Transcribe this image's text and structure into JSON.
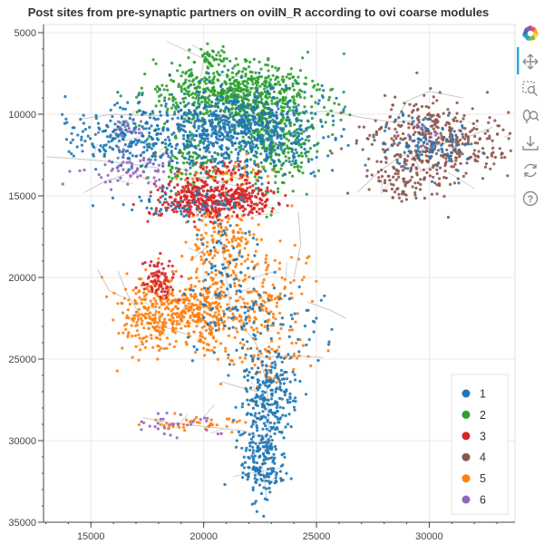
{
  "chart_data": {
    "type": "scatter",
    "title": "Post sites from pre-synaptic partners on oviIN_R according to ovi coarse modules",
    "xlabel": "",
    "ylabel": "",
    "xlim": [
      12900,
      33800
    ],
    "ylim": [
      35000,
      4500
    ],
    "y_inverted": true,
    "x_ticks": [
      15000,
      20000,
      25000,
      30000
    ],
    "y_ticks": [
      5000,
      10000,
      15000,
      20000,
      25000,
      30000,
      35000
    ],
    "grid": true,
    "legend_placement": "bottom-right",
    "legend": [
      "1",
      "2",
      "3",
      "4",
      "5",
      "6"
    ],
    "series_colors": {
      "1": "#1f77b4",
      "2": "#2ca02c",
      "3": "#d62728",
      "4": "#8c564b",
      "5": "#ff7f0e",
      "6": "#9467bd"
    },
    "skeleton_color": "#c8c8c8",
    "clusters": [
      {
        "series": "2",
        "cx": 21500,
        "cy": 8800,
        "sx": 1800,
        "sy": 1000,
        "n": 700
      },
      {
        "series": "2",
        "cx": 23200,
        "cy": 11800,
        "sx": 900,
        "sy": 1400,
        "n": 260
      },
      {
        "series": "2",
        "cx": 19200,
        "cy": 12800,
        "sx": 900,
        "sy": 900,
        "n": 120
      },
      {
        "series": "2",
        "cx": 20500,
        "cy": 6600,
        "sx": 500,
        "sy": 400,
        "n": 40
      },
      {
        "series": "1",
        "cx": 21300,
        "cy": 11000,
        "sx": 2000,
        "sy": 1300,
        "n": 800
      },
      {
        "series": "1",
        "cx": 16200,
        "cy": 11300,
        "sx": 1300,
        "sy": 900,
        "n": 170
      },
      {
        "series": "1",
        "cx": 19200,
        "cy": 15500,
        "sx": 1300,
        "sy": 500,
        "n": 70
      },
      {
        "series": "1",
        "cx": 21000,
        "cy": 20000,
        "sx": 700,
        "sy": 1800,
        "n": 90
      },
      {
        "series": "1",
        "cx": 22700,
        "cy": 23000,
        "sx": 1500,
        "sy": 1400,
        "n": 90
      },
      {
        "series": "1",
        "cx": 22900,
        "cy": 27300,
        "sx": 600,
        "sy": 1200,
        "n": 220
      },
      {
        "series": "1",
        "cx": 22600,
        "cy": 31200,
        "sx": 500,
        "sy": 1100,
        "n": 200
      },
      {
        "series": "1",
        "cx": 30000,
        "cy": 11800,
        "sx": 1200,
        "sy": 900,
        "n": 90
      },
      {
        "series": "3",
        "cx": 20400,
        "cy": 15200,
        "sx": 1300,
        "sy": 600,
        "n": 460
      },
      {
        "series": "3",
        "cx": 18000,
        "cy": 20100,
        "sx": 400,
        "sy": 600,
        "n": 80
      },
      {
        "series": "3",
        "cx": 21000,
        "cy": 13400,
        "sx": 700,
        "sy": 400,
        "n": 40
      },
      {
        "series": "5",
        "cx": 19500,
        "cy": 22100,
        "sx": 1400,
        "sy": 1200,
        "n": 460
      },
      {
        "series": "5",
        "cx": 17400,
        "cy": 22600,
        "sx": 700,
        "sy": 1000,
        "n": 110
      },
      {
        "series": "5",
        "cx": 20800,
        "cy": 17800,
        "sx": 800,
        "sy": 1300,
        "n": 150
      },
      {
        "series": "5",
        "cx": 22800,
        "cy": 20800,
        "sx": 1000,
        "sy": 1500,
        "n": 100
      },
      {
        "series": "5",
        "cx": 22500,
        "cy": 25000,
        "sx": 900,
        "sy": 1200,
        "n": 70
      },
      {
        "series": "5",
        "cx": 19800,
        "cy": 29000,
        "sx": 1200,
        "sy": 250,
        "n": 40
      },
      {
        "series": "5",
        "cx": 21000,
        "cy": 13800,
        "sx": 900,
        "sy": 500,
        "n": 50
      },
      {
        "series": "4",
        "cx": 30300,
        "cy": 11900,
        "sx": 1500,
        "sy": 1300,
        "n": 420
      },
      {
        "series": "4",
        "cx": 28800,
        "cy": 14200,
        "sx": 700,
        "sy": 600,
        "n": 60
      },
      {
        "series": "6",
        "cx": 16800,
        "cy": 13400,
        "sx": 1000,
        "sy": 600,
        "n": 80
      },
      {
        "series": "6",
        "cx": 18900,
        "cy": 29000,
        "sx": 1000,
        "sy": 300,
        "n": 30
      },
      {
        "series": "6",
        "cx": 16500,
        "cy": 10800,
        "sx": 600,
        "sy": 400,
        "n": 25
      },
      {
        "series": "6",
        "cx": 29700,
        "cy": 11200,
        "sx": 500,
        "sy": 500,
        "n": 12
      }
    ],
    "skeleton_paths": [
      [
        [
          14500,
          10300
        ],
        [
          16000,
          10000
        ],
        [
          18000,
          10100
        ],
        [
          20000,
          10000
        ],
        [
          22000,
          10100
        ],
        [
          24000,
          10000
        ],
        [
          25500,
          9800
        ],
        [
          27000,
          10200
        ],
        [
          28500,
          10500
        ],
        [
          30000,
          10300
        ]
      ],
      [
        [
          28500,
          10500
        ],
        [
          29000,
          9200
        ],
        [
          30000,
          8600
        ],
        [
          31500,
          9000
        ]
      ],
      [
        [
          13000,
          12600
        ],
        [
          15000,
          12800
        ],
        [
          16500,
          13000
        ],
        [
          18000,
          13300
        ]
      ],
      [
        [
          14700,
          14800
        ],
        [
          15500,
          14200
        ],
        [
          16500,
          13700
        ]
      ],
      [
        [
          20500,
          16000
        ],
        [
          20800,
          18000
        ],
        [
          21000,
          20000
        ],
        [
          21200,
          22000
        ],
        [
          22300,
          24000
        ],
        [
          22800,
          26500
        ],
        [
          22900,
          29000
        ],
        [
          22600,
          31500
        ],
        [
          22800,
          33600
        ]
      ],
      [
        [
          16200,
          19600
        ],
        [
          16600,
          21000
        ],
        [
          17200,
          22300
        ],
        [
          18200,
          23000
        ],
        [
          19500,
          23600
        ]
      ],
      [
        [
          24200,
          16000
        ],
        [
          24300,
          18000
        ],
        [
          24000,
          20000
        ]
      ],
      [
        [
          22300,
          24900
        ],
        [
          23800,
          24800
        ],
        [
          25300,
          24900
        ]
      ],
      [
        [
          17300,
          28600
        ],
        [
          18500,
          28900
        ],
        [
          19800,
          29100
        ],
        [
          21800,
          29400
        ],
        [
          22500,
          29800
        ]
      ],
      [
        [
          20800,
          26400
        ],
        [
          21800,
          26800
        ],
        [
          22400,
          27000
        ]
      ],
      [
        [
          26800,
          14800
        ],
        [
          27800,
          13500
        ],
        [
          28700,
          12600
        ],
        [
          30000,
          12000
        ],
        [
          31500,
          11500
        ],
        [
          32800,
          10800
        ]
      ],
      [
        [
          24600,
          21500
        ],
        [
          25600,
          22000
        ],
        [
          26300,
          22500
        ]
      ],
      [
        [
          15300,
          19500
        ],
        [
          15800,
          20800
        ],
        [
          16400,
          21200
        ]
      ]
    ]
  },
  "toolbar": {
    "tools": [
      {
        "name": "bokeh-logo",
        "label": "Bokeh"
      },
      {
        "name": "pan-tool",
        "label": "Pan"
      },
      {
        "name": "box-zoom-tool",
        "label": "Box Zoom"
      },
      {
        "name": "wheel-zoom-tool",
        "label": "Wheel Zoom"
      },
      {
        "name": "save-tool",
        "label": "Save"
      },
      {
        "name": "reset-tool",
        "label": "Reset"
      },
      {
        "name": "help-tool",
        "label": "Help"
      }
    ]
  }
}
